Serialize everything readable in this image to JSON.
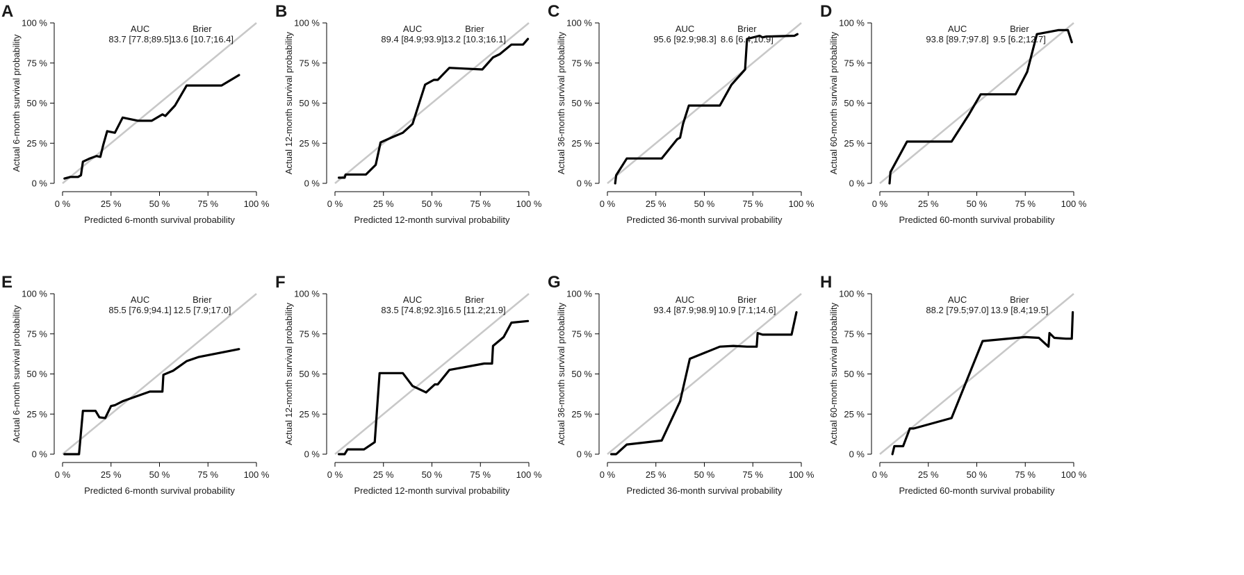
{
  "chart_data": [
    {
      "type": "line",
      "panel": "A",
      "xlabel": "Predicted 6-month survival probability",
      "ylabel": "Actual 6-month survival probability",
      "xlim": [
        0,
        100
      ],
      "ylim": [
        0,
        100
      ],
      "xticks": [
        "0 %",
        "25 %",
        "50 %",
        "75 %",
        "100 %"
      ],
      "yticks": [
        "0 %",
        "25 %",
        "50 %",
        "75 %",
        "100 %"
      ],
      "auc_label": "AUC",
      "auc_value": "83.7 [77.8;89.5]",
      "brier_label": "Brier",
      "brier_value": "13.6 [10.7;16.4]",
      "x": [
        1,
        4,
        8,
        9.5,
        10.5,
        14,
        17.5,
        19.5,
        21,
        23,
        27,
        31,
        39,
        46,
        51.5,
        53,
        58,
        64,
        70,
        82,
        91
      ],
      "y": [
        3,
        4,
        4,
        5,
        13.5,
        15.5,
        17,
        16.5,
        24,
        32.5,
        31.5,
        41,
        39,
        39,
        43,
        42,
        48.5,
        61,
        61,
        61,
        67.5
      ]
    },
    {
      "type": "line",
      "panel": "B",
      "xlabel": "Predicted 12-month survival probability",
      "ylabel": "Actual 12-month survival probability",
      "xlim": [
        0,
        100
      ],
      "ylim": [
        0,
        100
      ],
      "xticks": [
        "0 %",
        "25 %",
        "50 %",
        "75 %",
        "100 %"
      ],
      "yticks": [
        "0 %",
        "25 %",
        "50 %",
        "75 %",
        "100 %"
      ],
      "auc_label": "AUC",
      "auc_value": "89.4 [84.9;93.9]",
      "brier_label": "Brier",
      "brier_value": "13.2 [10.3;16.1]",
      "x": [
        2,
        5,
        5.5,
        16,
        21,
        23.5,
        30,
        35,
        40,
        46.5,
        51,
        53,
        59,
        67,
        76,
        81.5,
        85,
        91,
        97,
        99.5
      ],
      "y": [
        3.5,
        3.5,
        5.5,
        5.5,
        11.5,
        25.5,
        29,
        31.5,
        37,
        61.5,
        64.5,
        64.5,
        72,
        71.5,
        71,
        78.5,
        80.5,
        86.5,
        86.5,
        90
      ]
    },
    {
      "type": "line",
      "panel": "C",
      "xlabel": "Predicted 36-month survival probability",
      "ylabel": "Actual 36-month survival probability",
      "xlim": [
        0,
        100
      ],
      "ylim": [
        0,
        100
      ],
      "xticks": [
        "0 %",
        "25 %",
        "50 %",
        "75 %",
        "100 %"
      ],
      "yticks": [
        "0 %",
        "25 %",
        "50 %",
        "75 %",
        "100 %"
      ],
      "auc_label": "AUC",
      "auc_value": "95.6 [92.9;98.3]",
      "brier_label": "Brier",
      "brier_value": "8.6 [6.4;10.9]",
      "x": [
        4,
        4.5,
        10,
        28,
        36,
        37.5,
        39,
        42,
        54,
        58,
        64,
        71,
        72,
        78.5,
        80,
        82,
        96.5,
        98
      ],
      "y": [
        0,
        5,
        15.5,
        15.5,
        27.5,
        28.5,
        37,
        48.5,
        48.5,
        48.5,
        61.5,
        71,
        90,
        92,
        91,
        91.5,
        92,
        93
      ]
    },
    {
      "type": "line",
      "panel": "D",
      "xlabel": "Predicted 60-month survival probability",
      "ylabel": "Actual 60-month survival probability",
      "xlim": [
        0,
        100
      ],
      "ylim": [
        0,
        100
      ],
      "xticks": [
        "0 %",
        "25 %",
        "50 %",
        "75 %",
        "100 %"
      ],
      "yticks": [
        "0 %",
        "25 %",
        "50 %",
        "75 %",
        "100 %"
      ],
      "auc_label": "AUC",
      "auc_value": "93.8 [89.7;97.8]",
      "brier_label": "Brier",
      "brier_value": "9.5 [6.2;12.7]",
      "x": [
        5,
        5.5,
        14,
        37,
        46,
        52,
        64,
        70,
        76,
        81,
        92,
        97,
        99
      ],
      "y": [
        0,
        7,
        26,
        26,
        43,
        55.5,
        55.5,
        55.5,
        69.5,
        93,
        95.5,
        95.5,
        88
      ]
    },
    {
      "type": "line",
      "panel": "E",
      "xlabel": "Predicted 6-month survival probability",
      "ylabel": "Actual 6-month survival probability",
      "xlim": [
        0,
        100
      ],
      "ylim": [
        0,
        100
      ],
      "xticks": [
        "0 %",
        "25 %",
        "50 %",
        "75 %",
        "100 %"
      ],
      "yticks": [
        "0 %",
        "25 %",
        "50 %",
        "75 %",
        "100 %"
      ],
      "auc_label": "AUC",
      "auc_value": "85.5 [76.9;94.1]",
      "brier_label": "Brier",
      "brier_value": "12.5 [7.9;17.0]",
      "x": [
        1,
        2,
        8.5,
        10.5,
        17,
        19,
        22,
        25,
        27,
        31,
        45,
        51.5,
        52,
        57,
        64,
        70,
        91
      ],
      "y": [
        0,
        0,
        0,
        27,
        27,
        23,
        22.5,
        30,
        30.5,
        33,
        39,
        39,
        49.5,
        52,
        58,
        60.5,
        65.5
      ]
    },
    {
      "type": "line",
      "panel": "F",
      "xlabel": "Predicted 12-month survival probability",
      "ylabel": "Actual 12-month survival probability",
      "xlim": [
        0,
        100
      ],
      "ylim": [
        0,
        100
      ],
      "xticks": [
        "0 %",
        "25 %",
        "50 %",
        "75 %",
        "100 %"
      ],
      "yticks": [
        "0 %",
        "25 %",
        "50 %",
        "75 %",
        "100 %"
      ],
      "auc_label": "AUC",
      "auc_value": "83.5 [74.8;92.3]",
      "brier_label": "Brier",
      "brier_value": "16.5 [11.2;21.9]",
      "x": [
        2,
        5,
        6.5,
        15,
        20.5,
        23,
        35,
        40,
        47,
        51.5,
        53,
        59,
        77,
        81,
        81.5,
        87,
        91,
        99.5
      ],
      "y": [
        0,
        0,
        3,
        3,
        7.5,
        50.5,
        50.5,
        42.5,
        38.5,
        43.5,
        43.5,
        52.5,
        56.5,
        56.5,
        67.5,
        73,
        82,
        83
      ]
    },
    {
      "type": "line",
      "panel": "G",
      "xlabel": "Predicted 36-month survival probability",
      "ylabel": "Actual 36-month survival probability",
      "xlim": [
        0,
        100
      ],
      "ylim": [
        0,
        100
      ],
      "xticks": [
        "0 %",
        "25 %",
        "50 %",
        "75 %",
        "100 %"
      ],
      "yticks": [
        "0 %",
        "25 %",
        "50 %",
        "75 %",
        "100 %"
      ],
      "auc_label": "AUC",
      "auc_value": "93.4 [87.9;98.9]",
      "brier_label": "Brier",
      "brier_value": "10.9 [7.1;14.6]",
      "x": [
        2,
        4.5,
        10,
        28,
        37.5,
        42.5,
        58,
        65,
        72,
        77,
        77.5,
        80,
        95,
        97.5
      ],
      "y": [
        0,
        0,
        6,
        8.5,
        33,
        59.5,
        67,
        67.5,
        67,
        67,
        75.5,
        74.5,
        74.5,
        88.5
      ]
    },
    {
      "type": "line",
      "panel": "H",
      "xlabel": "Predicted 60-month survival probability",
      "ylabel": "Actual 60-month survival probability",
      "xlim": [
        0,
        100
      ],
      "ylim": [
        0,
        100
      ],
      "xticks": [
        "0 %",
        "25 %",
        "50 %",
        "75 %",
        "100 %"
      ],
      "yticks": [
        "0 %",
        "25 %",
        "50 %",
        "75 %",
        "100 %"
      ],
      "auc_label": "AUC",
      "auc_value": "88.2 [79.5;97.0]",
      "brier_label": "Brier",
      "brier_value": "13.9 [8.4;19.5]",
      "x": [
        6.5,
        7.5,
        12,
        15.5,
        17.5,
        37,
        53,
        75,
        82,
        87,
        87.5,
        90,
        96,
        99,
        99.5
      ],
      "y": [
        0,
        5,
        5,
        16,
        16,
        22.5,
        70.5,
        73,
        72.5,
        67,
        75.5,
        72.5,
        72,
        72,
        88.5
      ]
    }
  ]
}
